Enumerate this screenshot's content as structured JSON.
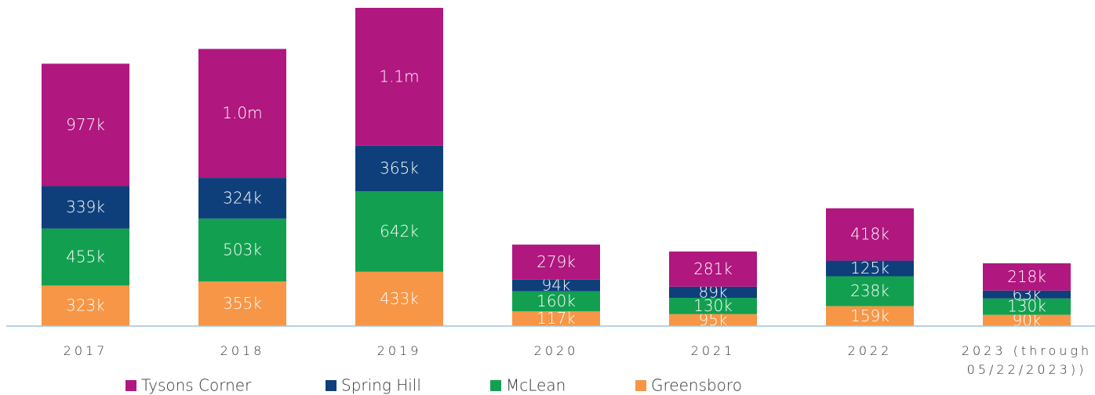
{
  "chart_data": {
    "type": "stacked_bar",
    "categories": [
      "2017",
      "2018",
      "2019",
      "2020",
      "2021",
      "2022",
      "2023 (through 05/22/2023))"
    ],
    "series": [
      {
        "name": "Tysons Corner",
        "color": "#b0177f",
        "values": [
          977000,
          1030000,
          1100000,
          279000,
          281000,
          418000,
          218000
        ],
        "value_labels": [
          "977k",
          "1.0m",
          "1.1m",
          "279k",
          "281k",
          "418k",
          "218k"
        ]
      },
      {
        "name": "Spring Hill",
        "color": "#0e3f7a",
        "values": [
          339000,
          324000,
          365000,
          94000,
          89000,
          125000,
          63000
        ],
        "value_labels": [
          "339k",
          "324k",
          "365k",
          "94k",
          "89k",
          "125k",
          "63k"
        ]
      },
      {
        "name": "McLean",
        "color": "#12a050",
        "values": [
          455000,
          503000,
          642000,
          160000,
          130000,
          238000,
          130000
        ],
        "value_labels": [
          "455k",
          "503k",
          "642k",
          "160k",
          "130k",
          "238k",
          "130k"
        ]
      },
      {
        "name": "Greensboro",
        "color": "#f79646",
        "values": [
          323000,
          355000,
          433000,
          117000,
          95000,
          159000,
          90000
        ],
        "value_labels": [
          "323k",
          "355k",
          "433k",
          "117k",
          "95k",
          "159k",
          "90k"
        ]
      }
    ]
  }
}
